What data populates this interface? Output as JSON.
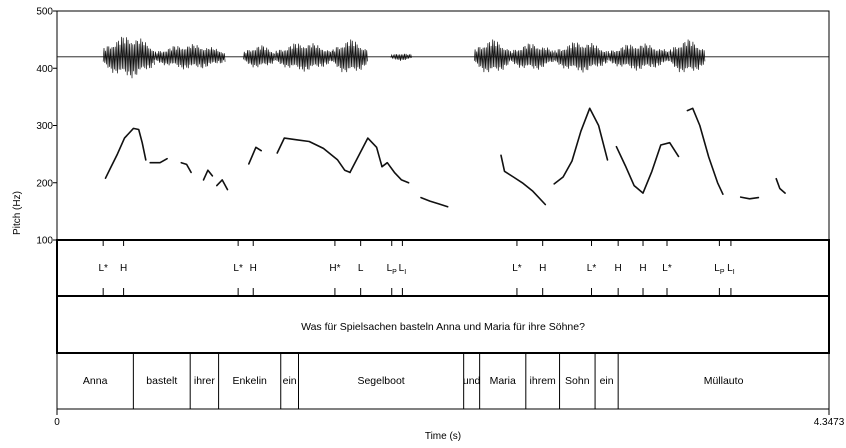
{
  "chart_data": {
    "type": "line",
    "ylabel": "Pitch (Hz)",
    "xlabel": "Time (s)",
    "ylim": [
      100,
      500
    ],
    "yticks": [
      100,
      200,
      300,
      400,
      500
    ],
    "xlim": [
      0,
      4.3473
    ],
    "xtick_labels": [
      "0",
      "4.3473"
    ],
    "waveform_center_hz": 420,
    "waveform_segments": [
      {
        "start": 0.26,
        "end": 0.55,
        "amp": 22
      },
      {
        "start": 0.55,
        "end": 0.95,
        "amp": 13
      },
      {
        "start": 1.05,
        "end": 1.23,
        "amp": 12
      },
      {
        "start": 1.23,
        "end": 1.55,
        "amp": 15
      },
      {
        "start": 1.55,
        "end": 1.75,
        "amp": 18
      },
      {
        "start": 1.88,
        "end": 2.0,
        "amp": 4
      },
      {
        "start": 2.35,
        "end": 2.55,
        "amp": 18
      },
      {
        "start": 2.55,
        "end": 2.8,
        "amp": 14
      },
      {
        "start": 2.8,
        "end": 3.1,
        "amp": 16
      },
      {
        "start": 3.1,
        "end": 3.45,
        "amp": 14
      },
      {
        "start": 3.45,
        "end": 3.65,
        "amp": 18
      }
    ],
    "pitch_series": [
      {
        "t": [
          0.273,
          0.3,
          0.34,
          0.38,
          0.43,
          0.46,
          0.48,
          0.5
        ],
        "hz": [
          208,
          225,
          250,
          278,
          295,
          293,
          270,
          240
        ]
      },
      {
        "t": [
          0.525,
          0.58,
          0.62
        ],
        "hz": [
          235,
          235,
          242
        ]
      },
      {
        "t": [
          0.7,
          0.73,
          0.755
        ],
        "hz": [
          235,
          232,
          218
        ]
      },
      {
        "t": [
          0.825,
          0.85,
          0.875
        ],
        "hz": [
          205,
          222,
          212
        ]
      },
      {
        "t": [
          0.9,
          0.93,
          0.96
        ],
        "hz": [
          195,
          205,
          188
        ]
      },
      {
        "t": [
          1.08,
          1.12,
          1.15
        ],
        "hz": [
          233,
          262,
          256
        ]
      },
      {
        "t": [
          1.24,
          1.28,
          1.35,
          1.42,
          1.5,
          1.58,
          1.62,
          1.65
        ],
        "hz": [
          252,
          278,
          275,
          272,
          260,
          240,
          222,
          218
        ]
      },
      {
        "t": [
          1.65,
          1.7,
          1.75,
          1.8,
          1.83
        ],
        "hz": [
          218,
          248,
          278,
          262,
          228
        ]
      },
      {
        "t": [
          1.83,
          1.86,
          1.9,
          1.94,
          1.98
        ],
        "hz": [
          228,
          235,
          218,
          205,
          200
        ]
      },
      {
        "t": [
          2.05,
          2.1,
          2.15,
          2.2
        ],
        "hz": [
          174,
          168,
          163,
          158
        ]
      },
      {
        "t": [
          2.5,
          2.52,
          2.57,
          2.62,
          2.68,
          2.75
        ],
        "hz": [
          248,
          220,
          210,
          200,
          185,
          162
        ]
      },
      {
        "t": [
          2.8,
          2.85,
          2.9,
          2.95,
          3.0,
          3.05,
          3.1
        ],
        "hz": [
          198,
          210,
          238,
          290,
          330,
          300,
          240
        ]
      },
      {
        "t": [
          3.15,
          3.2,
          3.25,
          3.3,
          3.35,
          3.4,
          3.45,
          3.5
        ],
        "hz": [
          263,
          230,
          195,
          182,
          220,
          266,
          270,
          246
        ]
      },
      {
        "t": [
          3.55,
          3.58,
          3.62,
          3.67,
          3.72,
          3.75
        ],
        "hz": [
          326,
          330,
          300,
          245,
          200,
          180
        ]
      },
      {
        "t": [
          3.85,
          3.9,
          3.95
        ],
        "hz": [
          175,
          172,
          174
        ]
      },
      {
        "t": [
          4.05,
          4.07,
          4.1
        ],
        "hz": [
          207,
          190,
          182
        ]
      }
    ]
  },
  "tones": [
    {
      "label": "L*",
      "t": 0.26
    },
    {
      "label": "H",
      "t": 0.375
    },
    {
      "label": "L*",
      "t": 1.02
    },
    {
      "label": "H",
      "t": 1.105
    },
    {
      "label": "H*",
      "t": 1.565
    },
    {
      "label": "L",
      "t": 1.71
    },
    {
      "label": "LP",
      "t": 1.885,
      "base": "L",
      "sub": "P"
    },
    {
      "label": "LI",
      "t": 1.945,
      "base": "L",
      "sub": "I"
    },
    {
      "label": "L*",
      "t": 2.59
    },
    {
      "label": "H",
      "t": 2.735
    },
    {
      "label": "L*",
      "t": 3.01
    },
    {
      "label": "H",
      "t": 3.16
    },
    {
      "label": "H",
      "t": 3.3
    },
    {
      "label": "L*",
      "t": 3.435
    },
    {
      "label": "LP",
      "t": 3.73,
      "base": "L",
      "sub": "P"
    },
    {
      "label": "LI",
      "t": 3.795,
      "base": "L",
      "sub": "I"
    }
  ],
  "sentence": "Was für Spielsachen basteln Anna und Maria für ihre Söhne?",
  "words": [
    {
      "text": "Anna",
      "start": 0.0,
      "end": 0.43
    },
    {
      "text": "bastelt",
      "start": 0.43,
      "end": 0.75
    },
    {
      "text": "ihrer",
      "start": 0.75,
      "end": 0.91
    },
    {
      "text": "Enkelin",
      "start": 0.91,
      "end": 1.26
    },
    {
      "text": "ein",
      "start": 1.26,
      "end": 1.36
    },
    {
      "text": "Segelboot",
      "start": 1.36,
      "end": 2.29
    },
    {
      "text": "und",
      "start": 2.29,
      "end": 2.38
    },
    {
      "text": "Maria",
      "start": 2.38,
      "end": 2.64
    },
    {
      "text": "ihrem",
      "start": 2.64,
      "end": 2.83
    },
    {
      "text": "Sohn",
      "start": 2.83,
      "end": 3.03
    },
    {
      "text": "ein",
      "start": 3.03,
      "end": 3.16
    },
    {
      "text": "Müllauto",
      "start": 3.16,
      "end": 4.3473
    }
  ],
  "colors": {
    "ink": "#111111",
    "grid": "#000000"
  }
}
